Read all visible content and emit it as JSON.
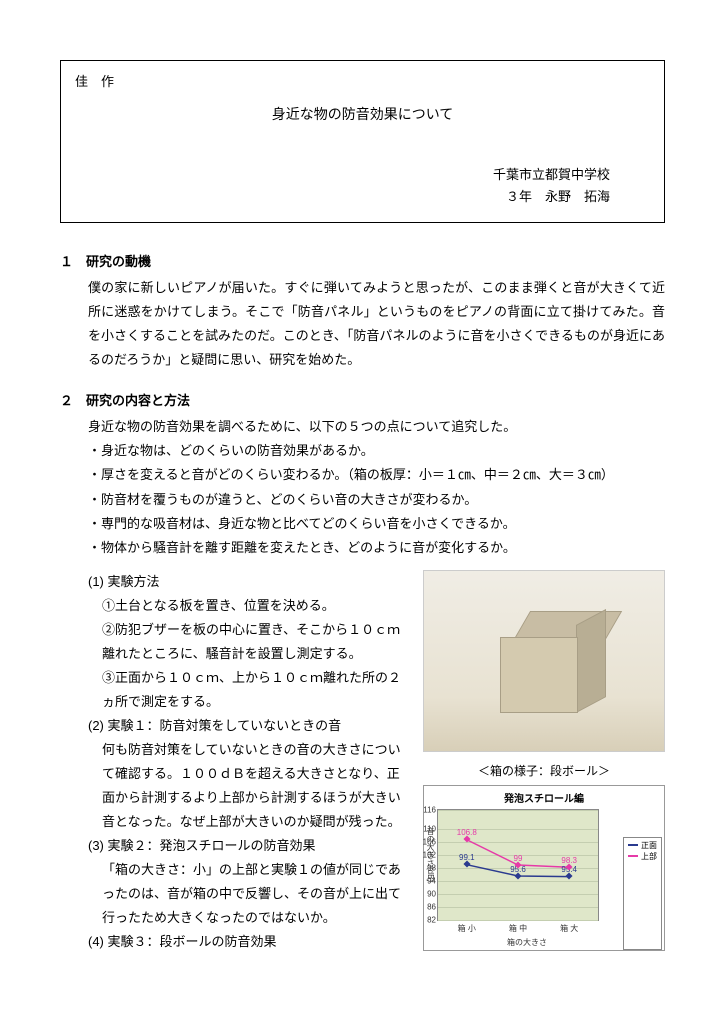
{
  "header": {
    "award": "佳　作",
    "title": "身近な物の防音効果について",
    "school": "千葉市立都賀中学校",
    "author": "３年　永野　拓海"
  },
  "section1": {
    "heading": "１　研究の動機",
    "body": "僕の家に新しいピアノが届いた。すぐに弾いてみようと思ったが、このまま弾くと音が大きくて近所に迷惑をかけてしまう。そこで「防音パネル」というものをピアノの背面に立て掛けてみた。音を小さくすることを試みたのだ。このとき、「防音パネルのように音を小さくできるものが身近にあるのだろうか」と疑問に思い、研究を始めた。"
  },
  "section2": {
    "heading": "２　研究の内容と方法",
    "intro": "身近な物の防音効果を調べるために、以下の５つの点について追究した。",
    "bullets": [
      "・身近な物は、どのくらいの防音効果があるか。",
      "・厚さを変えると音がどのくらい変わるか。（箱の板厚：小＝１㎝、中＝２㎝、大＝３㎝）",
      "・防音材を覆うものが違うと、どのくらい音の大きさが変わるか。",
      "・専門的な吸音材は、身近な物と比べてどのくらい音を小さくできるか。",
      "・物体から騒音計を離す距離を変えたとき、どのように音が変化するか。"
    ],
    "method_heading": "(1) 実験方法",
    "method_steps": [
      "①土台となる板を置き、位置を決める。",
      "②防犯ブザーを板の中心に置き、そこから１０ｃｍ離れたところに、騒音計を設置し測定する。",
      "③正面から１０ｃｍ、上から１０ｃｍ離れた所の２ヵ所で測定をする。"
    ],
    "exp1_heading": "(2) 実験１：防音対策をしていないときの音",
    "exp1_body": "何も防音対策をしていないときの音の大きさについて確認する。１００ｄＢを超える大きさとなり、正面から計測するより上部から計測するほうが大きい音となった。なぜ上部が大きいのか疑問が残った。",
    "exp2_heading": "(3) 実験２：発泡スチロールの防音効果",
    "exp2_body": "「箱の大きさ：小」の上部と実験１の値が同じであったのは、音が箱の中で反響し、その音が上に出て行ったため大きくなったのではないか。",
    "exp3_heading": "(4) 実験３：段ボールの防音効果"
  },
  "photo_caption": "＜箱の様子：段ボール＞",
  "chart": {
    "title": "発泡スチロール編",
    "ylabel": "音の大きさ(dB)",
    "xlabel": "箱の大きさ",
    "categories": [
      "箱 小",
      "箱 中",
      "箱 大"
    ],
    "ylim": [
      82,
      116
    ],
    "yticks": [
      82,
      86,
      90,
      94,
      98,
      102,
      106,
      110,
      116
    ],
    "series": [
      {
        "name": "正面",
        "color": "#2a3a8f",
        "values": [
          99.1,
          95.6,
          95.4
        ]
      },
      {
        "name": "上部",
        "color": "#e63aa8",
        "values": [
          106.8,
          99.0,
          98.3
        ]
      }
    ],
    "background_color": "#dfe7c9",
    "grid_color": "#c4ceb0"
  }
}
